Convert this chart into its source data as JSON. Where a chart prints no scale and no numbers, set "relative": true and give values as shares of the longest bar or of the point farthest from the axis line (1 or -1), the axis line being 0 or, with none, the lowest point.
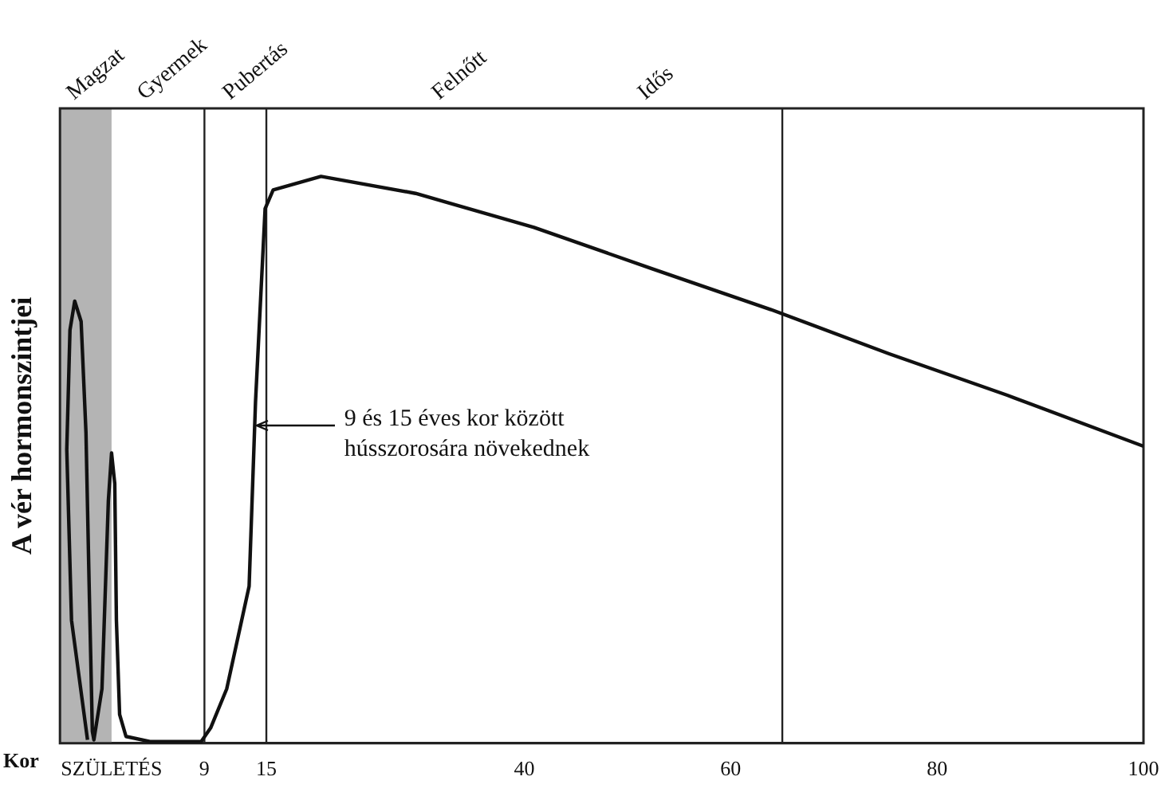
{
  "chart_data": {
    "type": "line",
    "ylabel": "A vér hormonszintjei",
    "xlabel": "Kor",
    "relative": true,
    "legend": false,
    "grid": false,
    "marker": "none",
    "xlim": [
      -5,
      100
    ],
    "xticks": [
      {
        "value": 0,
        "label": "SZÜLETÉS"
      },
      9,
      15,
      40,
      60,
      80,
      100
    ],
    "bands": [
      {
        "axis": "x",
        "from": -5,
        "to": 0,
        "color": "#b4b4b4"
      }
    ],
    "ref_lines": [
      {
        "axis": "x",
        "value": 9
      },
      {
        "axis": "x",
        "value": 15
      },
      {
        "axis": "x",
        "value": 65
      }
    ],
    "annotations": [
      "Magzat",
      "Gyermek",
      "Pubertás",
      "Felnőtt",
      "Idős",
      "9 és 15 éves kor között\nhússzorosára növekednek"
    ],
    "series": [
      {
        "color": "#111111",
        "x": [
          -2.33,
          -3.88,
          -4.34,
          -4.03,
          -3.57,
          -2.95,
          -2.48,
          -2.17,
          -1.86,
          -1.71,
          -0.93,
          -0.31,
          0,
          0.31,
          0.47,
          0.78,
          1.4,
          3.72,
          8.68,
          9.6,
          11.16,
          13.33,
          13.95,
          14.88,
          15.66,
          20.3,
          29.46,
          40.93,
          52.4,
          63.9,
          75.35,
          86.8,
          100
        ],
        "values": [
          0.006,
          0.217,
          0.518,
          0.729,
          0.78,
          0.744,
          0.548,
          0.277,
          0.021,
          0.006,
          0.096,
          0.428,
          0.512,
          0.458,
          0.217,
          0.051,
          0.012,
          0.003,
          0.003,
          0.027,
          0.096,
          0.277,
          0.602,
          0.943,
          0.976,
          1,
          0.97,
          0.91,
          0.837,
          0.765,
          0.687,
          0.614,
          0.524
        ]
      }
    ]
  }
}
